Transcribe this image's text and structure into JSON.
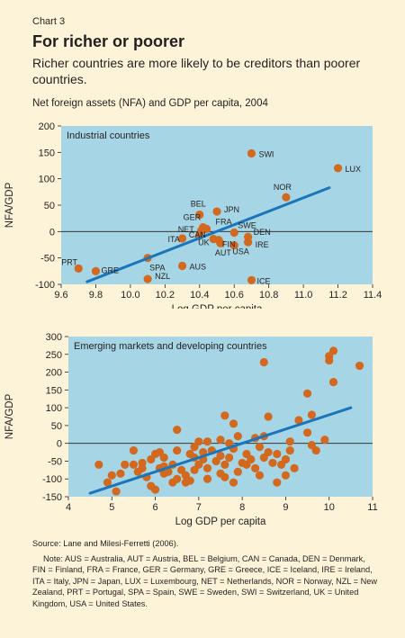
{
  "header": {
    "chart_number": "Chart 3",
    "title": "For richer or poorer",
    "subtitle": "Richer countries are more likely to be creditors than poorer countries.",
    "caption": "Net foreign assets (NFA) and GDP per capita, 2004"
  },
  "chart_data": [
    {
      "type": "scatter",
      "panel_label": "Industrial countries",
      "xlabel": "Log GDP per capita",
      "ylabel": "NFA/GDP",
      "xlim": [
        9.6,
        11.4
      ],
      "ylim": [
        -100,
        200
      ],
      "xticks": [
        "9.6",
        "9.8",
        "10.0",
        "10.2",
        "10.4",
        "10.6",
        "10.8",
        "11.0",
        "11.2",
        "11.4"
      ],
      "yticks": [
        "200",
        "150",
        "100",
        "50",
        "0",
        "-50",
        "-100"
      ],
      "trendline": [
        [
          9.75,
          -95
        ],
        [
          11.15,
          83
        ]
      ],
      "points": [
        {
          "label": "SWI",
          "x": 10.7,
          "y": 148
        },
        {
          "label": "LUX",
          "x": 11.2,
          "y": 120
        },
        {
          "label": "NOR",
          "x": 10.9,
          "y": 65
        },
        {
          "label": "JPN",
          "x": 10.5,
          "y": 38
        },
        {
          "label": "BEL",
          "x": 10.4,
          "y": 32
        },
        {
          "label": "GER",
          "x": 10.42,
          "y": 8
        },
        {
          "label": "FRA",
          "x": 10.44,
          "y": 5
        },
        {
          "label": "NET",
          "x": 10.41,
          "y": 2
        },
        {
          "label": "SWE",
          "x": 10.6,
          "y": -2
        },
        {
          "label": "CAN",
          "x": 10.4,
          "y": -8
        },
        {
          "label": "DEN",
          "x": 10.68,
          "y": -10
        },
        {
          "label": "ITA",
          "x": 10.3,
          "y": -13
        },
        {
          "label": "UK",
          "x": 10.48,
          "y": -14
        },
        {
          "label": "FIN",
          "x": 10.51,
          "y": -16
        },
        {
          "label": "IRE",
          "x": 10.68,
          "y": -20
        },
        {
          "label": "AUT",
          "x": 10.52,
          "y": -22
        },
        {
          "label": "USA",
          "x": 10.6,
          "y": -26
        },
        {
          "label": "SPA",
          "x": 10.1,
          "y": -50
        },
        {
          "label": "AUS",
          "x": 10.3,
          "y": -65
        },
        {
          "label": "PRT",
          "x": 9.7,
          "y": -70
        },
        {
          "label": "GRE",
          "x": 9.8,
          "y": -75
        },
        {
          "label": "NZL",
          "x": 10.1,
          "y": -90
        },
        {
          "label": "ICE",
          "x": 10.7,
          "y": -92
        }
      ]
    },
    {
      "type": "scatter",
      "panel_label": "Emerging markets and developing countries",
      "xlabel": "Log GDP per capita",
      "ylabel": "NFA/GDP",
      "xlim": [
        4,
        11
      ],
      "ylim": [
        -150,
        300
      ],
      "xticks": [
        "4",
        "5",
        "6",
        "7",
        "8",
        "9",
        "10",
        "11"
      ],
      "yticks": [
        "300",
        "250",
        "200",
        "150",
        "100",
        "50",
        "0",
        "-50",
        "-100",
        "-150"
      ],
      "trendline": [
        [
          4.5,
          -140
        ],
        [
          10.5,
          100
        ]
      ],
      "points": [
        [
          10.1,
          260
        ],
        [
          10.7,
          218
        ],
        [
          8.5,
          228
        ],
        [
          10,
          245
        ],
        [
          10,
          233
        ],
        [
          10.1,
          172
        ],
        [
          9.5,
          140
        ],
        [
          9.6,
          80
        ],
        [
          9.3,
          65
        ],
        [
          8.6,
          75
        ],
        [
          7.6,
          78
        ],
        [
          6.5,
          38
        ],
        [
          7.8,
          55
        ],
        [
          9.1,
          5
        ],
        [
          9.9,
          10
        ],
        [
          9.5,
          30
        ],
        [
          9.6,
          -5
        ],
        [
          9.7,
          -20
        ],
        [
          8.5,
          20
        ],
        [
          8.3,
          15
        ],
        [
          7.9,
          20
        ],
        [
          7.5,
          10
        ],
        [
          7.7,
          0
        ],
        [
          7.2,
          5
        ],
        [
          7,
          5
        ],
        [
          6.9,
          -10
        ],
        [
          7.1,
          -25
        ],
        [
          6.8,
          -30
        ],
        [
          6.5,
          -20
        ],
        [
          6.2,
          -40
        ],
        [
          6,
          -30
        ],
        [
          5.9,
          -45
        ],
        [
          5.7,
          -55
        ],
        [
          5.5,
          -20
        ],
        [
          5.3,
          -60
        ],
        [
          5.2,
          -85
        ],
        [
          5,
          -90
        ],
        [
          4.7,
          -60
        ],
        [
          4.9,
          -110
        ],
        [
          5.1,
          -135
        ],
        [
          5.5,
          -60
        ],
        [
          5.7,
          -70
        ],
        [
          5.8,
          -95
        ],
        [
          5.9,
          -120
        ],
        [
          6,
          -130
        ],
        [
          6.1,
          -70
        ],
        [
          6.2,
          -65
        ],
        [
          6.3,
          -80
        ],
        [
          6.4,
          -110
        ],
        [
          6.5,
          -100
        ],
        [
          6.6,
          -75
        ],
        [
          6.7,
          -90
        ],
        [
          6.8,
          -105
        ],
        [
          6.9,
          -40
        ],
        [
          7,
          -60
        ],
        [
          7.1,
          -45
        ],
        [
          7.2,
          -70
        ],
        [
          7.3,
          -20
        ],
        [
          7.4,
          -50
        ],
        [
          7.5,
          -35
        ],
        [
          7.6,
          -60
        ],
        [
          7.7,
          -40
        ],
        [
          7.8,
          -15
        ],
        [
          7.9,
          -80
        ],
        [
          8,
          -55
        ],
        [
          8.1,
          -30
        ],
        [
          8.2,
          -45
        ],
        [
          8.3,
          -70
        ],
        [
          8.4,
          -10
        ],
        [
          8.5,
          -40
        ],
        [
          8.6,
          -25
        ],
        [
          8.7,
          -55
        ],
        [
          8.8,
          -30
        ],
        [
          8.9,
          -60
        ],
        [
          9,
          -45
        ],
        [
          9.1,
          -20
        ],
        [
          9.2,
          -70
        ],
        [
          8.4,
          -90
        ],
        [
          7.6,
          -95
        ],
        [
          7.2,
          -100
        ],
        [
          6.7,
          -110
        ],
        [
          6.2,
          -85
        ],
        [
          5.6,
          -80
        ],
        [
          6.1,
          -25
        ],
        [
          6.4,
          -60
        ],
        [
          7.8,
          -110
        ],
        [
          8.8,
          -110
        ],
        [
          7.5,
          -85
        ],
        [
          9,
          -90
        ],
        [
          6.9,
          -75
        ],
        [
          8.1,
          -60
        ]
      ]
    }
  ],
  "notes": {
    "source": "Source: Lane and Milesi-Ferretti (2006).",
    "lines": [
      "Note: AUS = Australia, AUT = Austria, BEL = Belgium, CAN = Canada, DEN = Denmark,",
      "FIN = Finland, FRA = France, GER = Germany, GRE = Greece, ICE = Iceland, IRE = Ireland,",
      "ITA = Italy, JPN = Japan, LUX = Luxembourg,  NET = Netherlands, NOR = Norway, NZL = New",
      "Zealand, PRT = Portugal, SPA = Spain, SWE = Sweden, SWI = Switzerland, UK = United",
      "Kingdom, USA = United States."
    ]
  },
  "colors": {
    "plot_bg": "#a6d6e6",
    "dot": "#d2691e",
    "trend": "#1b75bb",
    "page_bg": "#fdf3d8"
  }
}
